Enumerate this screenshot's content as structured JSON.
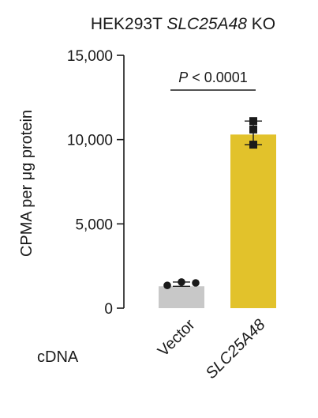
{
  "chart_data": {
    "type": "bar",
    "title": "HEK293T",
    "title_gene": "SLC25A48",
    "title_suffix": "KO",
    "ylabel": "CPMA per μg protein",
    "x_side_label": "cDNA",
    "categories": [
      "Vector",
      "SLC25A48"
    ],
    "values": [
      1300,
      10300
    ],
    "bar_colors": [
      "#c8c8c8",
      "#e2c22b"
    ],
    "points": [
      [
        1350,
        1550,
        1500
      ],
      [
        9700,
        10600,
        11100
      ]
    ],
    "error_low": [
      1300,
      9700
    ],
    "error_high": [
      1550,
      11100
    ],
    "ylim": [
      0,
      15000
    ],
    "yticks": [
      0,
      5000,
      10000,
      15000
    ],
    "ytick_labels": [
      "0",
      "5,000",
      "10,000",
      "15,000"
    ],
    "annotation": {
      "p_letter": "P",
      "p_rest": " < 0.0001"
    },
    "grid": false
  }
}
